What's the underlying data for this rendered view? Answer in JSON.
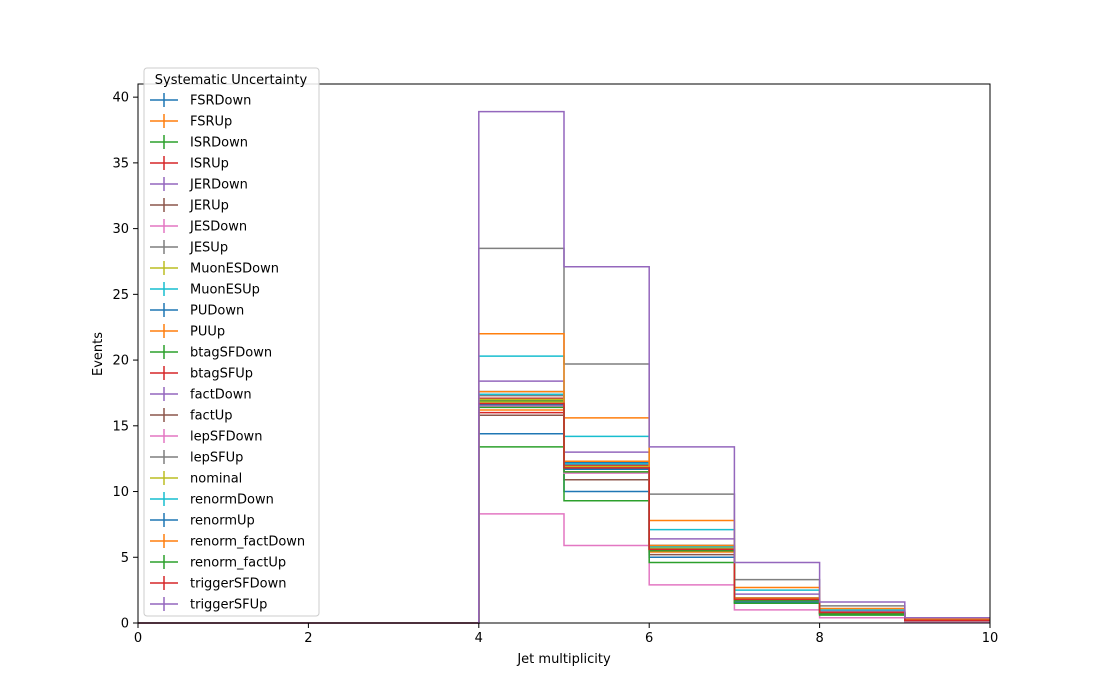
{
  "chart_data": {
    "type": "line",
    "step": "post",
    "title": "",
    "xlabel": "Jet multiplicity",
    "ylabel": "Events",
    "xlim": [
      0,
      10
    ],
    "ylim": [
      0,
      41
    ],
    "xticks": [
      0,
      2,
      4,
      6,
      8,
      10
    ],
    "yticks": [
      0,
      5,
      10,
      15,
      20,
      25,
      30,
      35,
      40
    ],
    "grid": false,
    "legend": {
      "title": "Systematic Uncertainty",
      "placement": "upper-left"
    },
    "bin_edges": [
      0,
      1,
      2,
      3,
      4,
      5,
      6,
      7,
      8,
      9,
      10
    ],
    "series": [
      {
        "name": "FSRDown",
        "color": "#1f77b4",
        "values": [
          0,
          0,
          0,
          0,
          17.6,
          12.2,
          5.9,
          1.9,
          0.8,
          0.2
        ]
      },
      {
        "name": "FSRUp",
        "color": "#ff7f0e",
        "values": [
          0,
          0,
          0,
          0,
          16.2,
          11.5,
          5.4,
          1.7,
          0.7,
          0.2
        ]
      },
      {
        "name": "ISRDown",
        "color": "#2ca02c",
        "values": [
          0,
          0,
          0,
          0,
          16.9,
          11.9,
          5.6,
          1.8,
          0.8,
          0.2
        ]
      },
      {
        "name": "ISRUp",
        "color": "#d62728",
        "values": [
          0,
          0,
          0,
          0,
          17.1,
          12.0,
          5.7,
          1.8,
          0.8,
          0.2
        ]
      },
      {
        "name": "JERDown",
        "color": "#9467bd",
        "values": [
          0,
          0,
          0,
          0,
          18.4,
          13.0,
          6.4,
          2.2,
          0.9,
          0.2
        ]
      },
      {
        "name": "JERUp",
        "color": "#8c564b",
        "values": [
          0,
          0,
          0,
          0,
          15.8,
          10.9,
          5.2,
          1.6,
          0.7,
          0.2
        ]
      },
      {
        "name": "JESDown",
        "color": "#e377c2",
        "values": [
          0,
          0,
          0,
          0,
          8.3,
          5.9,
          2.9,
          1.0,
          0.4,
          0.1
        ]
      },
      {
        "name": "JESUp",
        "color": "#7f7f7f",
        "values": [
          0,
          0,
          0,
          0,
          28.5,
          19.7,
          9.8,
          3.3,
          1.3,
          0.3
        ]
      },
      {
        "name": "MuonESDown",
        "color": "#bcbd22",
        "values": [
          0,
          0,
          0,
          0,
          16.8,
          11.8,
          5.6,
          1.8,
          0.8,
          0.2
        ]
      },
      {
        "name": "MuonESUp",
        "color": "#17becf",
        "values": [
          0,
          0,
          0,
          0,
          20.3,
          14.2,
          7.1,
          2.5,
          1.0,
          0.3
        ]
      },
      {
        "name": "PUDown",
        "color": "#1f77b4",
        "values": [
          0,
          0,
          0,
          0,
          14.4,
          10.0,
          5.0,
          1.6,
          0.7,
          0.2
        ]
      },
      {
        "name": "PUUp",
        "color": "#ff7f0e",
        "values": [
          0,
          0,
          0,
          0,
          22.0,
          15.6,
          7.8,
          2.7,
          1.1,
          0.3
        ]
      },
      {
        "name": "btagSFDown",
        "color": "#2ca02c",
        "values": [
          0,
          0,
          0,
          0,
          13.4,
          9.3,
          4.6,
          1.5,
          0.6,
          0.2
        ]
      },
      {
        "name": "btagSFUp",
        "color": "#d62728",
        "values": [
          0,
          0,
          0,
          0,
          16.0,
          11.7,
          5.6,
          1.7,
          0.7,
          0.2
        ]
      },
      {
        "name": "factDown",
        "color": "#9467bd",
        "values": [
          0,
          0,
          0,
          0,
          17.0,
          12.1,
          5.8,
          1.9,
          0.8,
          0.2
        ]
      },
      {
        "name": "factUp",
        "color": "#8c564b",
        "values": [
          0,
          0,
          0,
          0,
          17.0,
          11.7,
          5.6,
          1.8,
          0.8,
          0.2
        ]
      },
      {
        "name": "lepSFDown",
        "color": "#e377c2",
        "values": [
          0,
          0,
          0,
          0,
          16.5,
          11.4,
          5.5,
          1.7,
          0.7,
          0.2
        ]
      },
      {
        "name": "lepSFUp",
        "color": "#7f7f7f",
        "values": [
          0,
          0,
          0,
          0,
          17.3,
          12.3,
          5.9,
          1.9,
          0.8,
          0.2
        ]
      },
      {
        "name": "nominal",
        "color": "#bcbd22",
        "values": [
          0,
          0,
          0,
          0,
          17.0,
          11.9,
          5.7,
          1.8,
          0.8,
          0.2
        ]
      },
      {
        "name": "renormDown",
        "color": "#17becf",
        "values": [
          0,
          0,
          0,
          0,
          17.4,
          12.1,
          5.8,
          1.9,
          0.8,
          0.2
        ]
      },
      {
        "name": "renormUp",
        "color": "#1f77b4",
        "values": [
          0,
          0,
          0,
          0,
          16.6,
          11.7,
          5.6,
          1.8,
          0.7,
          0.2
        ]
      },
      {
        "name": "renorm_factDown",
        "color": "#ff7f0e",
        "values": [
          0,
          0,
          0,
          0,
          17.6,
          12.3,
          5.9,
          1.9,
          0.8,
          0.2
        ]
      },
      {
        "name": "renorm_factUp",
        "color": "#2ca02c",
        "values": [
          0,
          0,
          0,
          0,
          16.4,
          11.5,
          5.5,
          1.7,
          0.7,
          0.2
        ]
      },
      {
        "name": "triggerSFDown",
        "color": "#d62728",
        "values": [
          0,
          0,
          0,
          0,
          16.7,
          11.8,
          5.6,
          1.8,
          0.8,
          0.2
        ]
      },
      {
        "name": "triggerSFUp",
        "color": "#9467bd",
        "values": [
          0,
          0,
          0,
          0,
          38.9,
          27.1,
          13.4,
          4.6,
          1.6,
          0.4
        ]
      }
    ]
  }
}
